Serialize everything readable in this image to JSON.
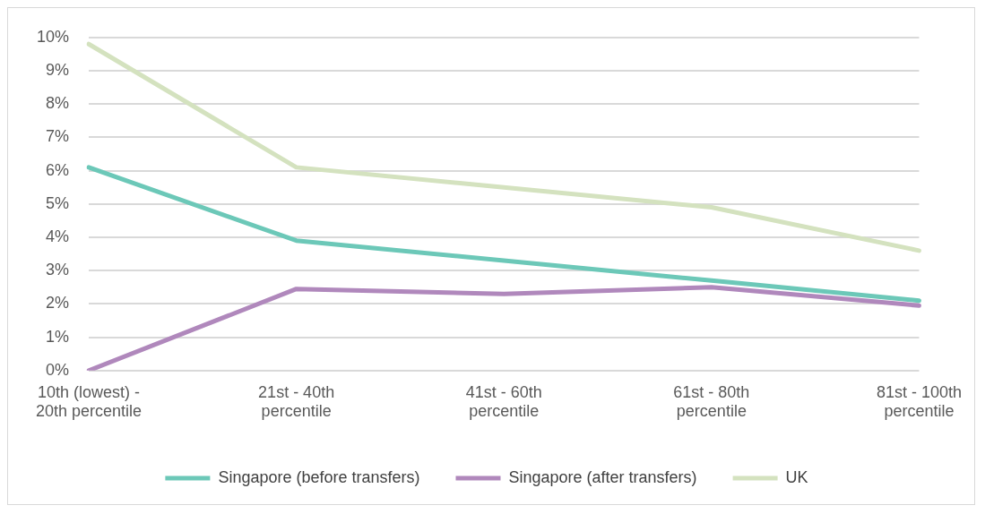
{
  "chart_data": {
    "type": "line",
    "categories": [
      "10th (lowest) - 20th percentile",
      "21st - 40th percentile",
      "41st - 60th percentile",
      "61st - 80th percentile",
      "81st - 100th percentile"
    ],
    "series": [
      {
        "name": "Singapore (before transfers)",
        "color": "#6cc8b8",
        "values": [
          6.1,
          3.9,
          3.3,
          2.7,
          2.1
        ]
      },
      {
        "name": "Singapore (after transfers)",
        "color": "#b088bc",
        "values": [
          0,
          2.45,
          2.3,
          2.5,
          1.95
        ]
      },
      {
        "name": "UK",
        "color": "#d4e2bf",
        "values": [
          9.8,
          6.1,
          5.5,
          4.9,
          3.6
        ]
      }
    ],
    "ylim": [
      0,
      10
    ],
    "yticks": [
      {
        "value": 0,
        "label": "0%"
      },
      {
        "value": 1,
        "label": "1%"
      },
      {
        "value": 2,
        "label": "2%"
      },
      {
        "value": 3,
        "label": "3%"
      },
      {
        "value": 4,
        "label": "4%"
      },
      {
        "value": 5,
        "label": "5%"
      },
      {
        "value": 6,
        "label": "6%"
      },
      {
        "value": 7,
        "label": "7%"
      },
      {
        "value": 8,
        "label": "8%"
      },
      {
        "value": 9,
        "label": "9%"
      },
      {
        "value": 10,
        "label": "10%"
      }
    ],
    "grid": "y",
    "legend": "bottom",
    "marker": "none",
    "line_style": "solid"
  }
}
